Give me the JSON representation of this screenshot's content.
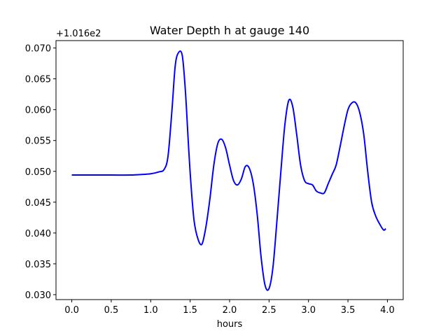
{
  "chart_data": {
    "type": "line",
    "title": "Water Depth h at gauge 140",
    "xlabel": "hours",
    "ylabel": "",
    "y_offset_label": "+1.016e2",
    "xlim": [
      -0.2,
      4.2
    ],
    "ylim": [
      0.0292,
      0.0712
    ],
    "xticks": [
      0.0,
      0.5,
      1.0,
      1.5,
      2.0,
      2.5,
      3.0,
      3.5,
      4.0
    ],
    "xtick_labels": [
      "0.0",
      "0.5",
      "1.0",
      "1.5",
      "2.0",
      "2.5",
      "3.0",
      "3.5",
      "4.0"
    ],
    "yticks": [
      0.03,
      0.035,
      0.04,
      0.045,
      0.05,
      0.055,
      0.06,
      0.065,
      0.07
    ],
    "ytick_labels": [
      "0.030",
      "0.035",
      "0.040",
      "0.045",
      "0.050",
      "0.055",
      "0.060",
      "0.065",
      "0.070"
    ],
    "grid": false,
    "series": [
      {
        "color": "#0000ff",
        "x": [
          0.0,
          0.25,
          0.5,
          0.75,
          0.9,
          1.0,
          1.1,
          1.17,
          1.22,
          1.27,
          1.31,
          1.35,
          1.4,
          1.44,
          1.48,
          1.51,
          1.55,
          1.6,
          1.65,
          1.7,
          1.75,
          1.8,
          1.85,
          1.9,
          1.95,
          2.0,
          2.05,
          2.1,
          2.15,
          2.2,
          2.25,
          2.3,
          2.35,
          2.4,
          2.45,
          2.5,
          2.55,
          2.6,
          2.65,
          2.7,
          2.75,
          2.8,
          2.85,
          2.9,
          2.95,
          3.0,
          3.05,
          3.1,
          3.15,
          3.2,
          3.25,
          3.3,
          3.35,
          3.4,
          3.45,
          3.5,
          3.55,
          3.6,
          3.65,
          3.7,
          3.75,
          3.8,
          3.85,
          3.9,
          3.95,
          3.98
        ],
        "y": [
          0.0494,
          0.0494,
          0.0494,
          0.0494,
          0.0495,
          0.0496,
          0.0499,
          0.0503,
          0.0525,
          0.06,
          0.067,
          0.0692,
          0.0688,
          0.063,
          0.054,
          0.048,
          0.042,
          0.039,
          0.0382,
          0.041,
          0.0455,
          0.051,
          0.0545,
          0.0552,
          0.0538,
          0.051,
          0.0485,
          0.0478,
          0.0488,
          0.0508,
          0.0505,
          0.048,
          0.043,
          0.036,
          0.0315,
          0.031,
          0.0345,
          0.042,
          0.05,
          0.0575,
          0.0615,
          0.0605,
          0.056,
          0.051,
          0.0485,
          0.048,
          0.0478,
          0.0468,
          0.0465,
          0.0465,
          0.048,
          0.0495,
          0.051,
          0.054,
          0.0572,
          0.06,
          0.0611,
          0.0611,
          0.0595,
          0.056,
          0.05,
          0.045,
          0.0428,
          0.0415,
          0.0405,
          0.0407
        ]
      }
    ]
  }
}
